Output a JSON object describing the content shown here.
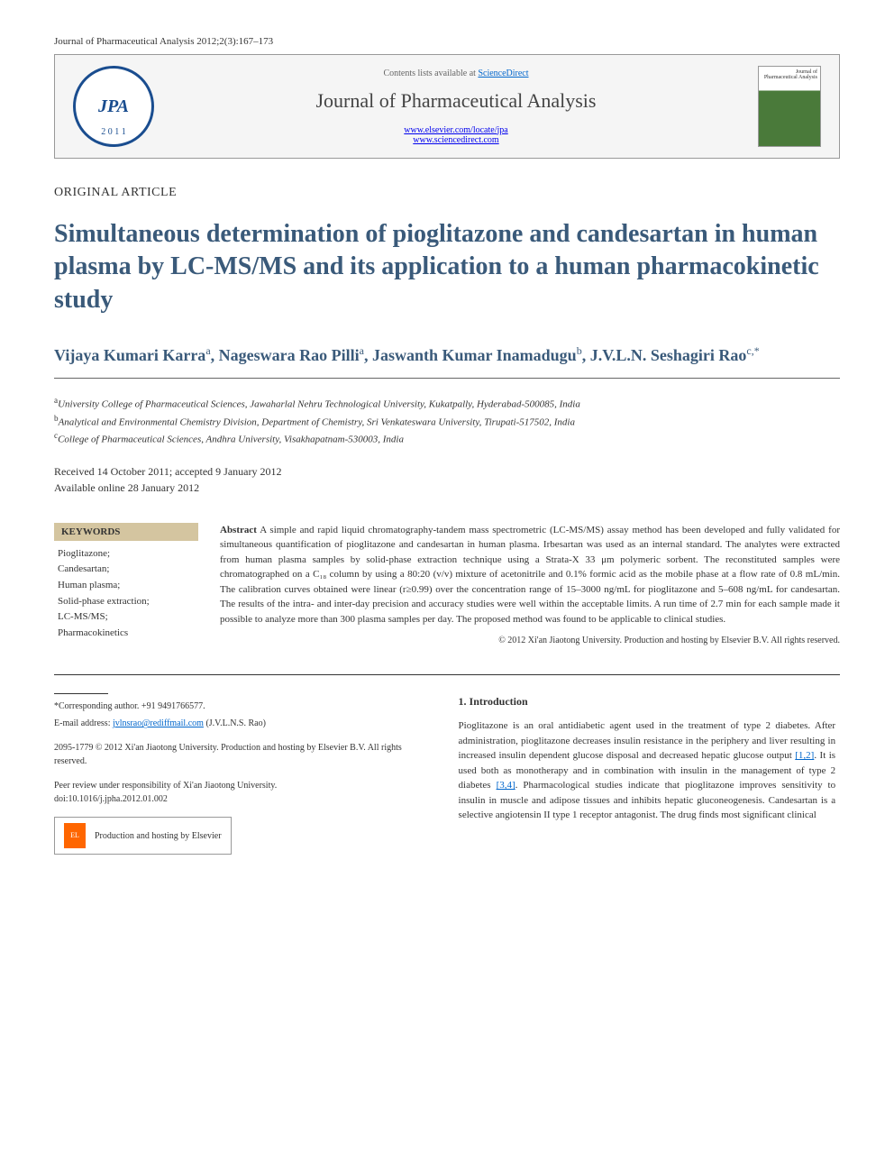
{
  "header": {
    "citation": "Journal of Pharmaceutical Analysis 2012;2(3):167–173",
    "contents_prefix": "Contents lists available at ",
    "contents_link": "ScienceDirect",
    "journal_name": "Journal of Pharmaceutical Analysis",
    "link1": "www.elsevier.com/locate/jpa",
    "link2": "www.sciencedirect.com",
    "logo_text": "JPA",
    "logo_year": "2 0 1 1",
    "cover_title": "Journal of Pharmaceutical Analysis"
  },
  "article": {
    "type": "ORIGINAL ARTICLE",
    "title": "Simultaneous determination of pioglitazone and candesartan in human plasma by LC-MS/MS and its application to a human pharmacokinetic study",
    "authors_html": "Vijaya Kumari Karra<sup>a</sup>, Nageswara Rao Pilli<sup>a</sup>, Jaswanth Kumar Inamadugu<sup>b</sup>, J.V.L.N. Seshagiri Rao<sup>c,*</sup>",
    "affiliations": {
      "a": "University College of Pharmaceutical Sciences, Jawaharlal Nehru Technological University, Kukatpally, Hyderabad-500085, India",
      "b": "Analytical and Environmental Chemistry Division, Department of Chemistry, Sri Venkateswara University, Tirupati-517502, India",
      "c": "College of Pharmaceutical Sciences, Andhra University, Visakhapatnam-530003, India"
    },
    "dates": {
      "received": "Received 14 October 2011; accepted 9 January 2012",
      "online": "Available online 28 January 2012"
    }
  },
  "keywords": {
    "title": "KEYWORDS",
    "items": "Pioglitazone;\nCandesartan;\nHuman plasma;\nSolid-phase extraction;\nLC-MS/MS;\nPharmacokinetics"
  },
  "abstract": {
    "label": "Abstract",
    "text": "A simple and rapid liquid chromatography-tandem mass spectrometric (LC-MS/MS) assay method has been developed and fully validated for simultaneous quantification of pioglitazone and candesartan in human plasma. Irbesartan was used as an internal standard. The analytes were extracted from human plasma samples by solid-phase extraction technique using a Strata-X 33 μm polymeric sorbent. The reconstituted samples were chromatographed on a C₁₈ column by using a 80:20 (v/v) mixture of acetonitrile and 0.1% formic acid as the mobile phase at a flow rate of 0.8 mL/min. The calibration curves obtained were linear (r≥0.99) over the concentration range of 15–3000 ng/mL for pioglitazone and 5–608 ng/mL for candesartan. The results of the intra- and inter-day precision and accuracy studies were well within the acceptable limits. A run time of 2.7 min for each sample made it possible to analyze more than 300 plasma samples per day. The proposed method was found to be applicable to clinical studies.",
    "copyright": "© 2012 Xi'an Jiaotong University. Production and hosting by Elsevier B.V. All rights reserved."
  },
  "footer": {
    "corresponding": "*Corresponding author. +91 9491766577.",
    "email_label": "E-mail address: ",
    "email": "jvlnsrao@rediffmail.com",
    "email_name": " (J.V.L.N.S. Rao)",
    "issn": "2095-1779 © 2012 Xi'an Jiaotong University. Production and hosting by Elsevier B.V. All rights reserved.",
    "peer_review": "Peer review under responsibility of Xi'an Jiaotong University.",
    "doi": "doi:10.1016/j.jpha.2012.01.002",
    "elsevier_text": "Production and hosting by Elsevier"
  },
  "introduction": {
    "heading": "1.    Introduction",
    "text": "Pioglitazone is an oral antidiabetic agent used in the treatment of type 2 diabetes. After administration, pioglitazone decreases insulin resistance in the periphery and liver resulting in increased insulin dependent glucose disposal and decreased hepatic glucose output [1,2]. It is used both as monotherapy and in combination with insulin in the management of type 2 diabetes [3,4]. Pharmacological studies indicate that pioglitazone improves sensitivity to insulin in muscle and adipose tissues and inhibits hepatic gluconeogenesis. Candesartan is a selective angiotensin II type 1 receptor antagonist. The drug finds most significant clinical"
  },
  "colors": {
    "title_color": "#3a5a7a",
    "link_color": "#0066cc",
    "keywords_bg": "#d4c5a0",
    "logo_border": "#1a4d8f"
  }
}
